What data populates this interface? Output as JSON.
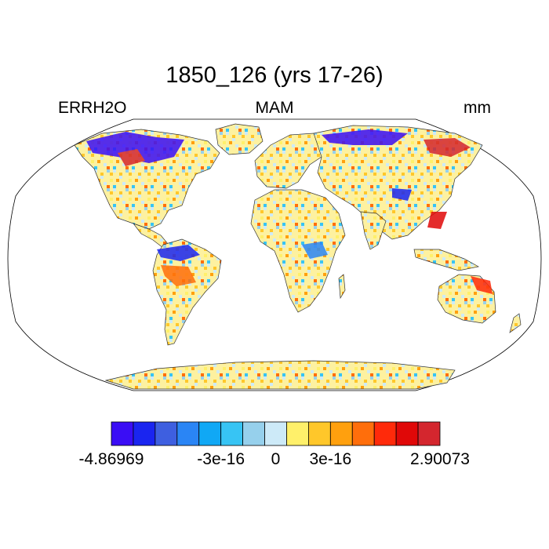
{
  "title": "1850_126 (yrs 17-26)",
  "left_label": "ERRH2O",
  "center_label": "MAM",
  "right_label": "mm",
  "projection": "Robinson",
  "colorbar": {
    "colors": [
      "#3a0df5",
      "#1a25f0",
      "#3e5fe0",
      "#2a85f5",
      "#10a8f5",
      "#37c4f4",
      "#96d0ec",
      "#cdeaf8",
      "#fff06a",
      "#ffc72a",
      "#ffa00e",
      "#ff6e0b",
      "#ff2a0a",
      "#e00808",
      "#d4262e"
    ],
    "labels": [
      {
        "text": "-4.86969",
        "index": 0
      },
      {
        "text": "-3e-16",
        "index": 5
      },
      {
        "text": "0",
        "index": 7.5
      },
      {
        "text": "3e-16",
        "index": 10
      },
      {
        "text": "2.90073",
        "index": 15
      }
    ]
  }
}
